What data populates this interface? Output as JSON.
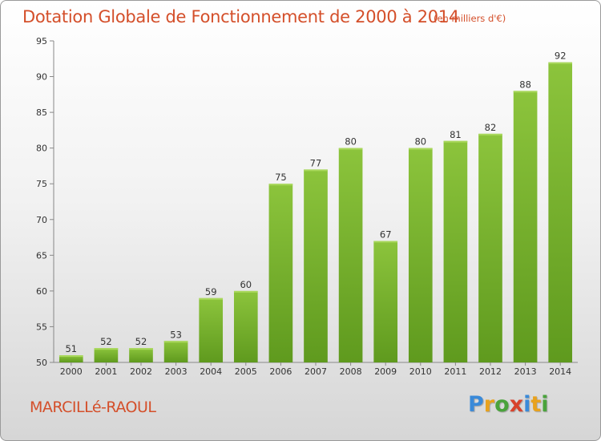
{
  "header": {
    "title": "Dotation Globale de Fonctionnement de 2000 à 2014",
    "subtitle": "(en milliers d'€)"
  },
  "footer": {
    "commune": "MARCILLé-RAOUL",
    "brand": {
      "letters": [
        "P",
        "r",
        "o",
        "x",
        "i",
        "t",
        "i"
      ],
      "colors": [
        "#3a8ad9",
        "#e8a21e",
        "#4aa33c",
        "#d8422b",
        "#3a8ad9",
        "#e8a21e",
        "#4aa33c"
      ]
    }
  },
  "chart_data": {
    "type": "bar",
    "categories": [
      "2000",
      "2001",
      "2002",
      "2003",
      "2004",
      "2005",
      "2006",
      "2007",
      "2008",
      "2009",
      "2010",
      "2011",
      "2012",
      "2013",
      "2014"
    ],
    "values": [
      51,
      52,
      52,
      53,
      59,
      60,
      75,
      77,
      80,
      67,
      80,
      81,
      82,
      88,
      92
    ],
    "ylim": [
      50,
      95
    ],
    "yticks": [
      50,
      55,
      60,
      65,
      70,
      75,
      80,
      85,
      90,
      95
    ],
    "grid": false,
    "data_labels": true,
    "bar_color": "#8cc43c",
    "bar_color_dark": "#5f9a1e"
  }
}
